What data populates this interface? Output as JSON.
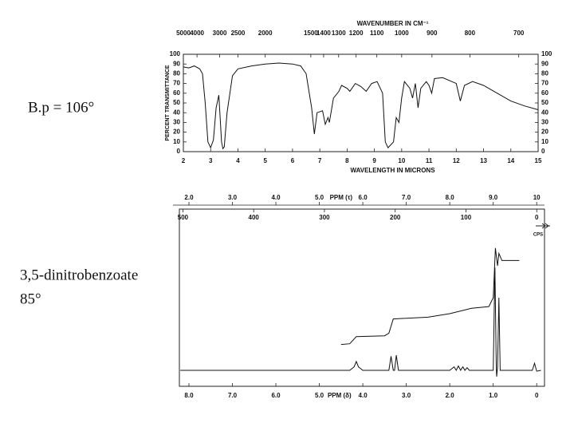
{
  "labels": [
    "B.p = 106°",
    "3,5-dinitrobenzoate",
    "85°"
  ],
  "chart_data": [
    {
      "type": "line",
      "x2label": "WAVENUMBER IN CM⁻¹",
      "xlabel": "WAVELENGTH IN MICRONS",
      "ylabel": "PERCENT TRANSMITTANCE",
      "xlim": [
        2,
        15
      ],
      "ylim": [
        0,
        100
      ],
      "xticks": [
        2,
        3,
        4,
        5,
        6,
        7,
        8,
        9,
        10,
        11,
        12,
        13,
        14,
        15
      ],
      "yticks": [
        0,
        10,
        20,
        30,
        40,
        50,
        60,
        70,
        80,
        90,
        100
      ],
      "y2ticks": [
        0,
        10,
        20,
        30,
        40,
        50,
        60,
        70,
        80,
        90,
        100
      ],
      "x2ticks": [
        {
          "value": 2,
          "label": "5000"
        },
        {
          "value": 2.5,
          "label": "4000"
        },
        {
          "value": 3.33,
          "label": "3000"
        },
        {
          "value": 4,
          "label": "2500"
        },
        {
          "value": 5,
          "label": "2000"
        },
        {
          "value": 6.67,
          "label": "1500"
        },
        {
          "value": 7.14,
          "label": "1400"
        },
        {
          "value": 7.69,
          "label": "1300"
        },
        {
          "value": 8.33,
          "label": "1200"
        },
        {
          "value": 9.09,
          "label": "1100"
        },
        {
          "value": 10,
          "label": "1000"
        },
        {
          "value": 11.11,
          "label": "900"
        },
        {
          "value": 12.5,
          "label": "800"
        },
        {
          "value": 14.29,
          "label": "700"
        }
      ],
      "x": [
        2.0,
        2.2,
        2.4,
        2.6,
        2.7,
        2.8,
        2.9,
        3.0,
        3.1,
        3.2,
        3.3,
        3.4,
        3.45,
        3.5,
        3.6,
        3.8,
        4.0,
        4.5,
        5.0,
        5.5,
        6.0,
        6.3,
        6.5,
        6.7,
        6.8,
        6.9,
        7.1,
        7.2,
        7.3,
        7.35,
        7.5,
        7.7,
        7.8,
        8.0,
        8.1,
        8.3,
        8.5,
        8.7,
        8.9,
        9.1,
        9.3,
        9.4,
        9.5,
        9.7,
        9.8,
        9.9,
        10.0,
        10.1,
        10.3,
        10.4,
        10.5,
        10.6,
        10.7,
        10.9,
        11.0,
        11.1,
        11.2,
        11.5,
        12.0,
        12.15,
        12.3,
        12.6,
        13.0,
        13.5,
        14.0,
        14.5,
        15.0
      ],
      "series": [
        {
          "color": "#111111",
          "values": [
            87,
            86,
            88,
            85,
            80,
            50,
            10,
            4,
            12,
            45,
            58,
            10,
            3,
            5,
            40,
            78,
            85,
            88,
            90,
            91,
            90,
            88,
            80,
            45,
            18,
            40,
            42,
            28,
            35,
            30,
            55,
            62,
            68,
            65,
            62,
            70,
            67,
            62,
            70,
            72,
            60,
            10,
            4,
            10,
            35,
            30,
            55,
            72,
            65,
            55,
            70,
            45,
            65,
            72,
            68,
            60,
            75,
            76,
            70,
            52,
            68,
            72,
            68,
            60,
            52,
            47,
            43
          ]
        }
      ]
    },
    {
      "type": "line",
      "xlabel": "PPM (δ)",
      "x2label": "PPM (τ)",
      "x3label": "CPS",
      "xlim": [
        8.22,
        -0.18
      ],
      "x2lim": [
        1.78,
        10.18
      ],
      "x3lim": [
        505,
        -11
      ],
      "ylim": [
        0,
        100
      ],
      "xticks": [
        {
          "value": 8,
          "label": "8.0"
        },
        {
          "value": 7,
          "label": "7.0"
        },
        {
          "value": 6,
          "label": "6.0"
        },
        {
          "value": 5,
          "label": "5.0"
        },
        {
          "value": 4,
          "label": "4.0"
        },
        {
          "value": 3,
          "label": "3.0"
        },
        {
          "value": 2,
          "label": "2.0"
        },
        {
          "value": 1,
          "label": "1.0"
        },
        0
      ],
      "x2ticks": [
        {
          "value": 2,
          "label": "2.0"
        },
        {
          "value": 3,
          "label": "3.0"
        },
        {
          "value": 4,
          "label": "4.0"
        },
        {
          "value": 5,
          "label": "5.0"
        },
        {
          "value": 6,
          "label": "6.0"
        },
        {
          "value": 7,
          "label": "7.0"
        },
        {
          "value": 8,
          "label": "8.0"
        },
        {
          "value": 9,
          "label": "9.0"
        },
        10
      ],
      "x3ticks": [
        500,
        400,
        300,
        200,
        100,
        0
      ],
      "series": [
        {
          "color": "#111111",
          "x": [
            8.2,
            4.3,
            4.2,
            4.15,
            4.1,
            4.0,
            3.4,
            3.35,
            3.3,
            3.27,
            3.23,
            3.18,
            2.0,
            1.9,
            1.85,
            1.8,
            1.75,
            1.7,
            1.65,
            1.6,
            1.55,
            1.2,
            1.0,
            0.96,
            0.93,
            0.92,
            0.9,
            0.87,
            0.84,
            0.1,
            0.05,
            0,
            -0.1
          ],
          "values": [
            9,
            9,
            11,
            14,
            11,
            9,
            9,
            17,
            9,
            9,
            17.5,
            9,
            9,
            11,
            9,
            11.5,
            9,
            11,
            9,
            10.5,
            9,
            9,
            9,
            67,
            11,
            5.5,
            11,
            50,
            9,
            9,
            13,
            8.5,
            9
          ]
        },
        {
          "color": "#111111",
          "x": [
            4.5,
            4.3,
            4.15,
            3.5,
            3.4,
            3.3,
            2.5,
            2.0,
            1.5,
            1.1,
            1.0,
            0.95,
            0.9,
            0.87,
            0.8,
            0.7,
            0.4
          ],
          "values": [
            23.6,
            24,
            28,
            28.5,
            30,
            38,
            39,
            41,
            44,
            45,
            50,
            78,
            68,
            75,
            71,
            71,
            71
          ]
        }
      ]
    }
  ]
}
